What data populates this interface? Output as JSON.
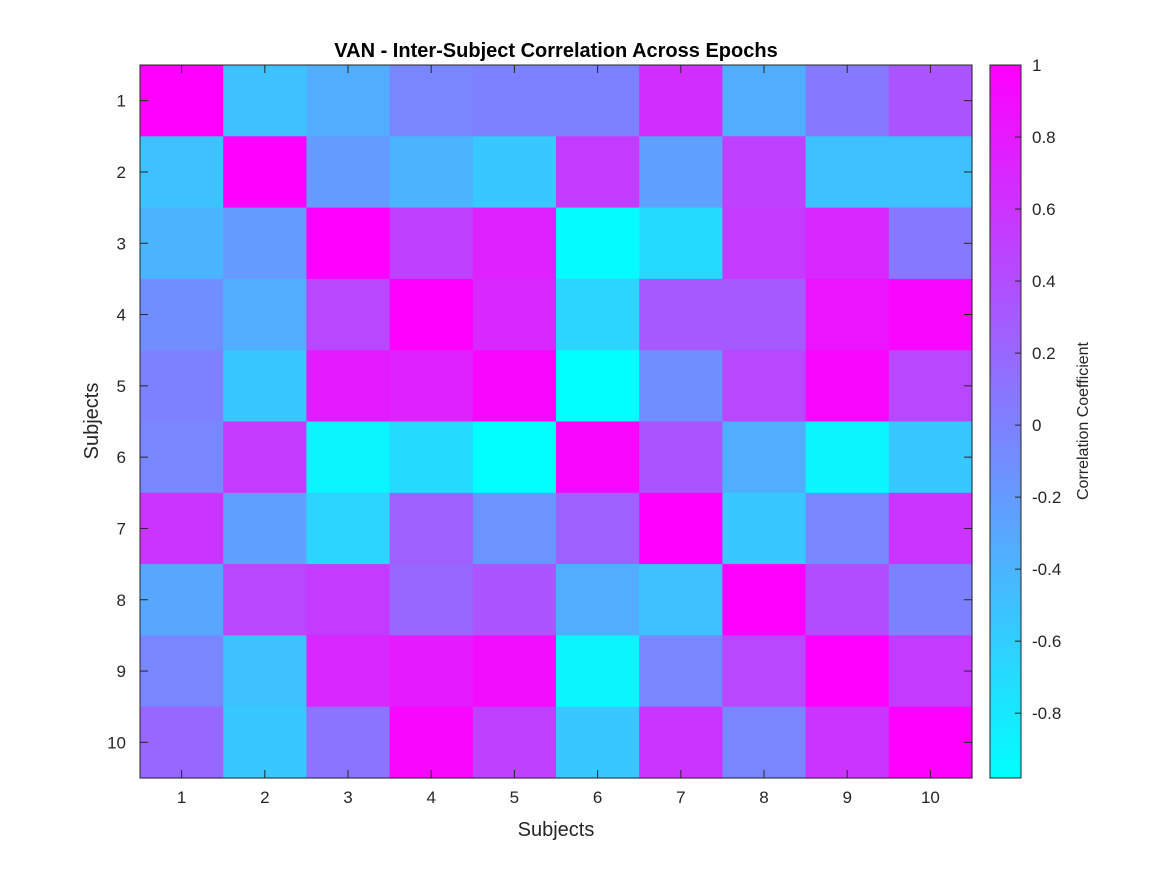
{
  "chart_data": {
    "type": "heatmap",
    "title": "VAN - Inter-Subject Correlation Across Epochs",
    "xlabel": "Subjects",
    "ylabel": "Subjects",
    "x_ticks": [
      "1",
      "2",
      "3",
      "4",
      "5",
      "6",
      "7",
      "8",
      "9",
      "10"
    ],
    "y_ticks": [
      "1",
      "2",
      "3",
      "4",
      "5",
      "6",
      "7",
      "8",
      "9",
      "10"
    ],
    "values": [
      [
        1.0,
        -0.5,
        -0.35,
        -0.05,
        0.0,
        0.0,
        0.65,
        -0.35,
        0.05,
        0.35
      ],
      [
        -0.5,
        1.0,
        -0.2,
        -0.4,
        -0.55,
        0.55,
        -0.25,
        0.5,
        -0.5,
        -0.5
      ],
      [
        -0.4,
        -0.2,
        1.0,
        0.5,
        0.75,
        -0.95,
        -0.7,
        0.55,
        0.7,
        0.05
      ],
      [
        -0.1,
        -0.35,
        0.45,
        1.0,
        0.7,
        -0.65,
        0.3,
        0.3,
        0.85,
        0.95
      ],
      [
        0.0,
        -0.55,
        0.8,
        0.75,
        0.95,
        -1.0,
        -0.1,
        0.45,
        0.95,
        0.45
      ],
      [
        -0.05,
        0.55,
        -0.9,
        -0.7,
        -1.0,
        0.95,
        0.35,
        -0.35,
        -0.9,
        -0.55
      ],
      [
        0.6,
        -0.25,
        -0.65,
        0.25,
        -0.15,
        0.25,
        1.0,
        -0.55,
        -0.05,
        0.6
      ],
      [
        -0.3,
        0.45,
        0.55,
        0.2,
        0.35,
        -0.35,
        -0.5,
        1.0,
        0.4,
        0.0
      ],
      [
        -0.05,
        -0.5,
        0.7,
        0.8,
        0.9,
        -0.9,
        -0.05,
        0.45,
        1.0,
        0.55
      ],
      [
        0.2,
        -0.55,
        0.1,
        0.95,
        0.5,
        -0.55,
        0.6,
        -0.05,
        0.6,
        1.0
      ]
    ],
    "colorbar": {
      "label": "Correlation Coefficient",
      "min": -0.98,
      "max": 1.0,
      "ticks": [
        "1",
        "0.8",
        "0.6",
        "0.4",
        "0.2",
        "0",
        "-0.2",
        "-0.4",
        "-0.6",
        "-0.8"
      ],
      "colormap": "cool",
      "low_color": "#00ffff",
      "high_color": "#ff00ff"
    },
    "grid": false,
    "legend": "none"
  }
}
